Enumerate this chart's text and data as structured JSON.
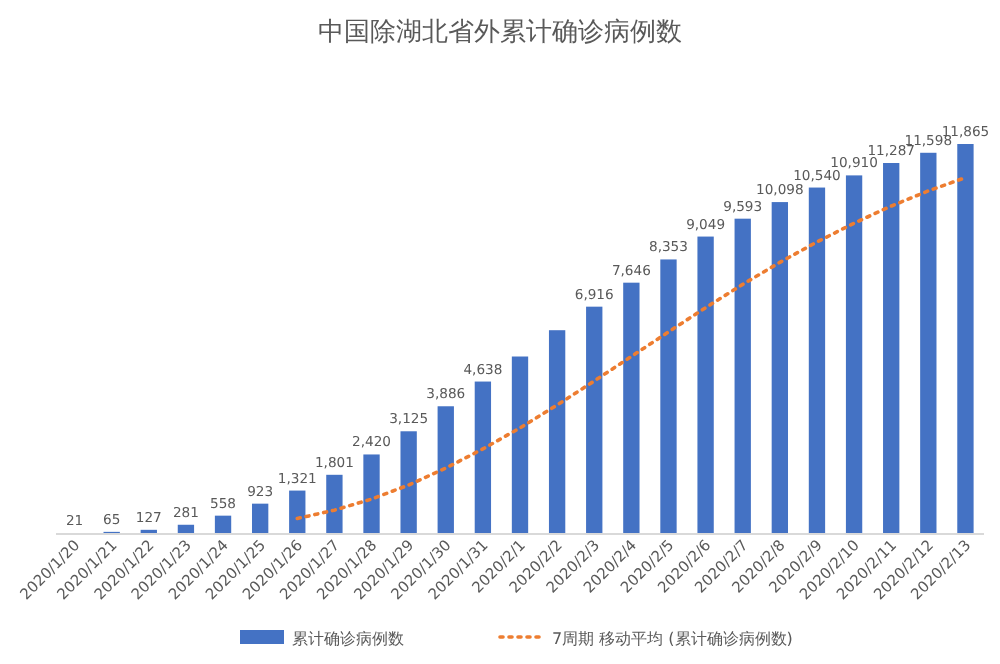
{
  "chart_data": {
    "type": "bar",
    "title": "中国除湖北省外累计确诊病例数",
    "categories": [
      "2020/1/20",
      "2020/1/21",
      "2020/1/22",
      "2020/1/23",
      "2020/1/24",
      "2020/1/25",
      "2020/1/26",
      "2020/1/27",
      "2020/1/28",
      "2020/1/29",
      "2020/1/30",
      "2020/1/31",
      "2020/2/1",
      "2020/2/2",
      "2020/2/3",
      "2020/2/4",
      "2020/2/5",
      "2020/2/6",
      "2020/2/7",
      "2020/2/8",
      "2020/2/9",
      "2020/2/10",
      "2020/2/11",
      "2020/2/12",
      "2020/2/13"
    ],
    "series": [
      {
        "name": "累计确诊病例数",
        "color": "#4472c4",
        "values": [
          21,
          65,
          127,
          281,
          558,
          923,
          1321,
          1801,
          2420,
          3125,
          3886,
          4638,
          5400,
          6200,
          6916,
          7646,
          8353,
          9049,
          9593,
          10098,
          10540,
          10910,
          11287,
          11598,
          11865
        ],
        "value_labels": [
          "21",
          "65",
          "127",
          "281",
          "558",
          "923",
          "1,321",
          "1,801",
          "2,420",
          "3,125",
          "3,886",
          "4,638",
          null,
          null,
          "6,916",
          "7,646",
          "8,353",
          "9,049",
          "9,593",
          "10,098",
          "10,540",
          "10,910",
          "11,287",
          "11,598",
          "11,865"
        ]
      },
      {
        "name": "7周期 移动平均 (累计确诊病例数)",
        "type": "line",
        "color": "#ed7d31",
        "line_style": "dotted",
        "values": [
          null,
          null,
          null,
          null,
          null,
          null,
          471,
          725,
          1062,
          1490,
          2005,
          2588,
          3227,
          3924,
          4655,
          5402,
          6148,
          6886,
          7594,
          8265,
          8885,
          9456,
          9976,
          10439,
          10842
        ]
      }
    ],
    "legend": "bottom"
  }
}
